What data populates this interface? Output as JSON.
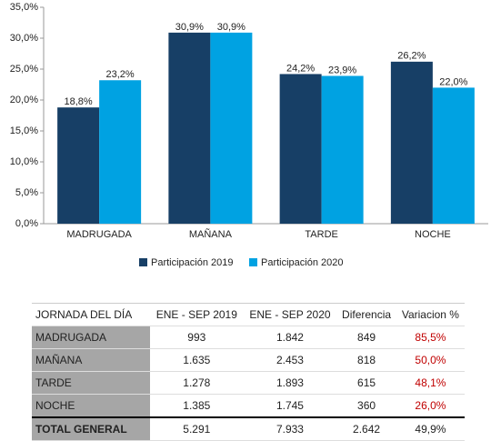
{
  "chart_data": {
    "type": "bar",
    "categories": [
      "MADRUGADA",
      "MAÑANA",
      "TARDE",
      "NOCHE"
    ],
    "series": [
      {
        "name": "Participación 2019",
        "color": "#173f66",
        "values": [
          18.8,
          30.9,
          24.2,
          26.2
        ],
        "value_labels": [
          "18,8%",
          "30,9%",
          "24,2%",
          "26,2%"
        ]
      },
      {
        "name": "Participación 2020",
        "color": "#00a2e2",
        "values": [
          23.2,
          30.9,
          23.9,
          22.0
        ],
        "value_labels": [
          "23,2%",
          "30,9%",
          "23,9%",
          "22,0%"
        ]
      }
    ],
    "ylim": [
      0,
      35
    ],
    "yticks": [
      {
        "value": 0,
        "label": "0,0%"
      },
      {
        "value": 5,
        "label": "5,0%"
      },
      {
        "value": 10,
        "label": "10,0%"
      },
      {
        "value": 15,
        "label": "15,0%"
      },
      {
        "value": 20,
        "label": "20,0%"
      },
      {
        "value": 25,
        "label": "25,0%"
      },
      {
        "value": 30,
        "label": "30,0%"
      },
      {
        "value": 35,
        "label": "35,0%"
      }
    ],
    "grid": false,
    "legend": "bottom"
  },
  "table": {
    "header": [
      "JORNADA DEL DÍA",
      "ENE - SEP 2019",
      "ENE - SEP 2020",
      "Diferencia",
      "Variacion %"
    ],
    "rows": [
      [
        "MADRUGADA",
        "993",
        "1.842",
        "849",
        "85,5%"
      ],
      [
        "MAÑANA",
        "1.635",
        "2.453",
        "818",
        "50,0%"
      ],
      [
        "TARDE",
        "1.278",
        "1.893",
        "615",
        "48,1%"
      ],
      [
        "NOCHE",
        "1.385",
        "1.745",
        "360",
        "26,0%"
      ]
    ],
    "total": [
      "TOTAL GENERAL",
      "5.291",
      "7.933",
      "2.642",
      "49,9%"
    ]
  }
}
